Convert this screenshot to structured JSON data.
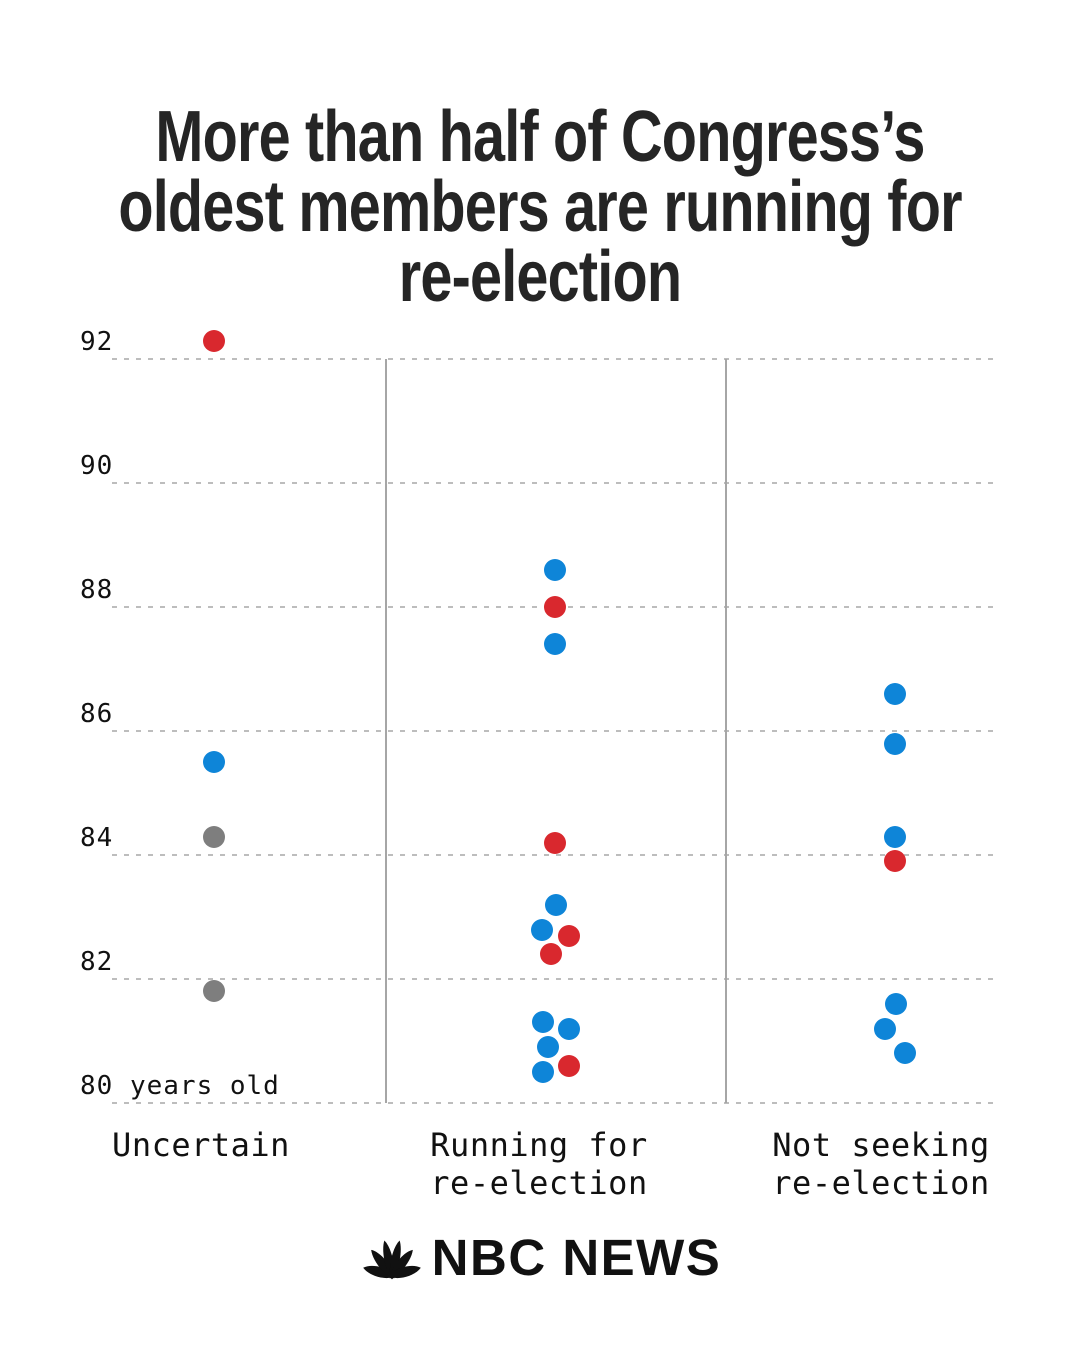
{
  "title": {
    "lines": [
      "More than half of Congress’s",
      "oldest members are running for",
      "re-election"
    ]
  },
  "chart_data": {
    "type": "scatter",
    "title": "More than half of Congress’s oldest members are running for re-election",
    "xlabel": "",
    "ylabel": "age in years",
    "ylim": [
      80,
      92.5
    ],
    "grid": "horizontal-dashed",
    "legend": "none",
    "yticks": [
      {
        "value": 92,
        "label": "92"
      },
      {
        "value": 90,
        "label": "90"
      },
      {
        "value": 88,
        "label": "88"
      },
      {
        "value": 86,
        "label": "86"
      },
      {
        "value": 84,
        "label": "84"
      },
      {
        "value": 82,
        "label": "82"
      },
      {
        "value": 80,
        "label": "80 years old"
      }
    ],
    "colors": {
      "R": "#d9282e",
      "D": "#0e85d8",
      "Other": "#7e7e7e"
    },
    "categories": [
      {
        "label_lines": [
          "Uncertain"
        ]
      },
      {
        "label_lines": [
          "Running for",
          "re-election"
        ]
      },
      {
        "label_lines": [
          "Not seeking",
          "re-election"
        ]
      }
    ],
    "series": [
      {
        "category": "Uncertain",
        "points": [
          {
            "age": 92.3,
            "party": "R"
          },
          {
            "age": 85.5,
            "party": "D"
          },
          {
            "age": 84.3,
            "party": "Other"
          },
          {
            "age": 81.8,
            "party": "Other"
          }
        ]
      },
      {
        "category": "Running for re-election",
        "points": [
          {
            "age": 88.6,
            "party": "D"
          },
          {
            "age": 88.0,
            "party": "R"
          },
          {
            "age": 87.4,
            "party": "D"
          },
          {
            "age": 84.2,
            "party": "R"
          },
          {
            "age": 83.2,
            "party": "D",
            "dx": 1
          },
          {
            "age": 82.8,
            "party": "D",
            "dx": -13
          },
          {
            "age": 82.7,
            "party": "R",
            "dx": 14
          },
          {
            "age": 82.4,
            "party": "R",
            "dx": -4
          },
          {
            "age": 81.3,
            "party": "D",
            "dx": -12
          },
          {
            "age": 81.2,
            "party": "D",
            "dx": 14
          },
          {
            "age": 80.9,
            "party": "D",
            "dx": -7
          },
          {
            "age": 80.6,
            "party": "R",
            "dx": 14
          },
          {
            "age": 80.5,
            "party": "D",
            "dx": -12
          }
        ]
      },
      {
        "category": "Not seeking re-election",
        "points": [
          {
            "age": 86.6,
            "party": "D"
          },
          {
            "age": 85.8,
            "party": "D"
          },
          {
            "age": 84.3,
            "party": "D"
          },
          {
            "age": 83.9,
            "party": "R"
          },
          {
            "age": 81.6,
            "party": "D",
            "dx": 1
          },
          {
            "age": 81.2,
            "party": "D",
            "dx": -10
          },
          {
            "age": 80.8,
            "party": "D",
            "dx": 10
          }
        ]
      }
    ]
  },
  "footer": {
    "brand": "NBC NEWS"
  }
}
